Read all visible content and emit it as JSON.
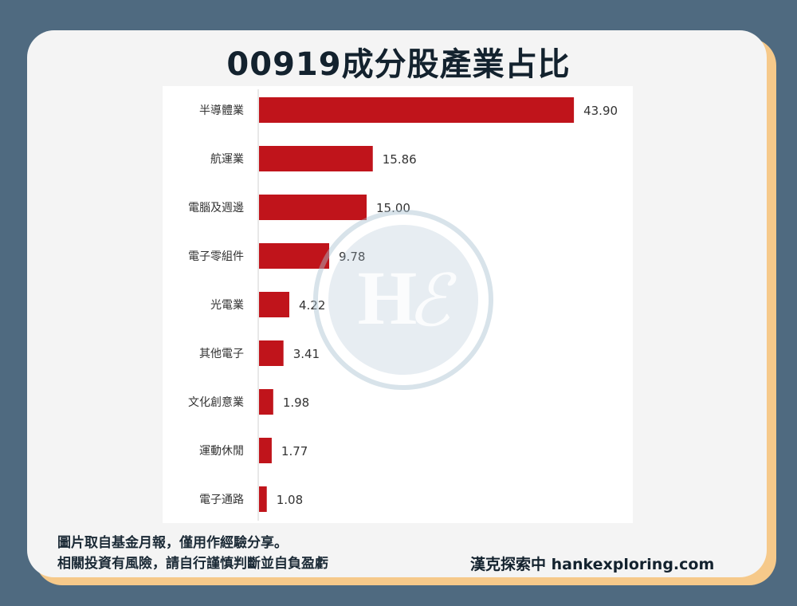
{
  "title": "00919成分股產業占比",
  "chart_data": {
    "type": "bar",
    "orientation": "horizontal",
    "categories": [
      "半導體業",
      "航運業",
      "電腦及週邊",
      "電子零組件",
      "光電業",
      "其他電子",
      "文化創意業",
      "運動休閒",
      "電子通路"
    ],
    "values": [
      43.9,
      15.86,
      15.0,
      9.78,
      4.22,
      3.41,
      1.98,
      1.77,
      1.08
    ],
    "value_labels": [
      "43.90",
      "15.86",
      "15.00",
      "9.78",
      "4.22",
      "3.41",
      "1.98",
      "1.77",
      "1.08"
    ],
    "xlim": [
      0,
      44
    ],
    "bar_color": "#c0141b",
    "grid": false,
    "legend": "none"
  },
  "watermark": {
    "text": "H",
    "script_letter": "ℰ",
    "color": "#a9c0d0"
  },
  "footer": {
    "note_line1": "圖片取自基金月報，僅用作經驗分享。",
    "note_line2": "相關投資有風險，請自行謹慎判斷並自負盈虧",
    "brand": "漢克探索中 hankexploring.com"
  },
  "colors": {
    "background": "#4f6a80",
    "card": "#f4f4f4",
    "card_shadow": "#f6c98a",
    "title": "#13222e"
  }
}
